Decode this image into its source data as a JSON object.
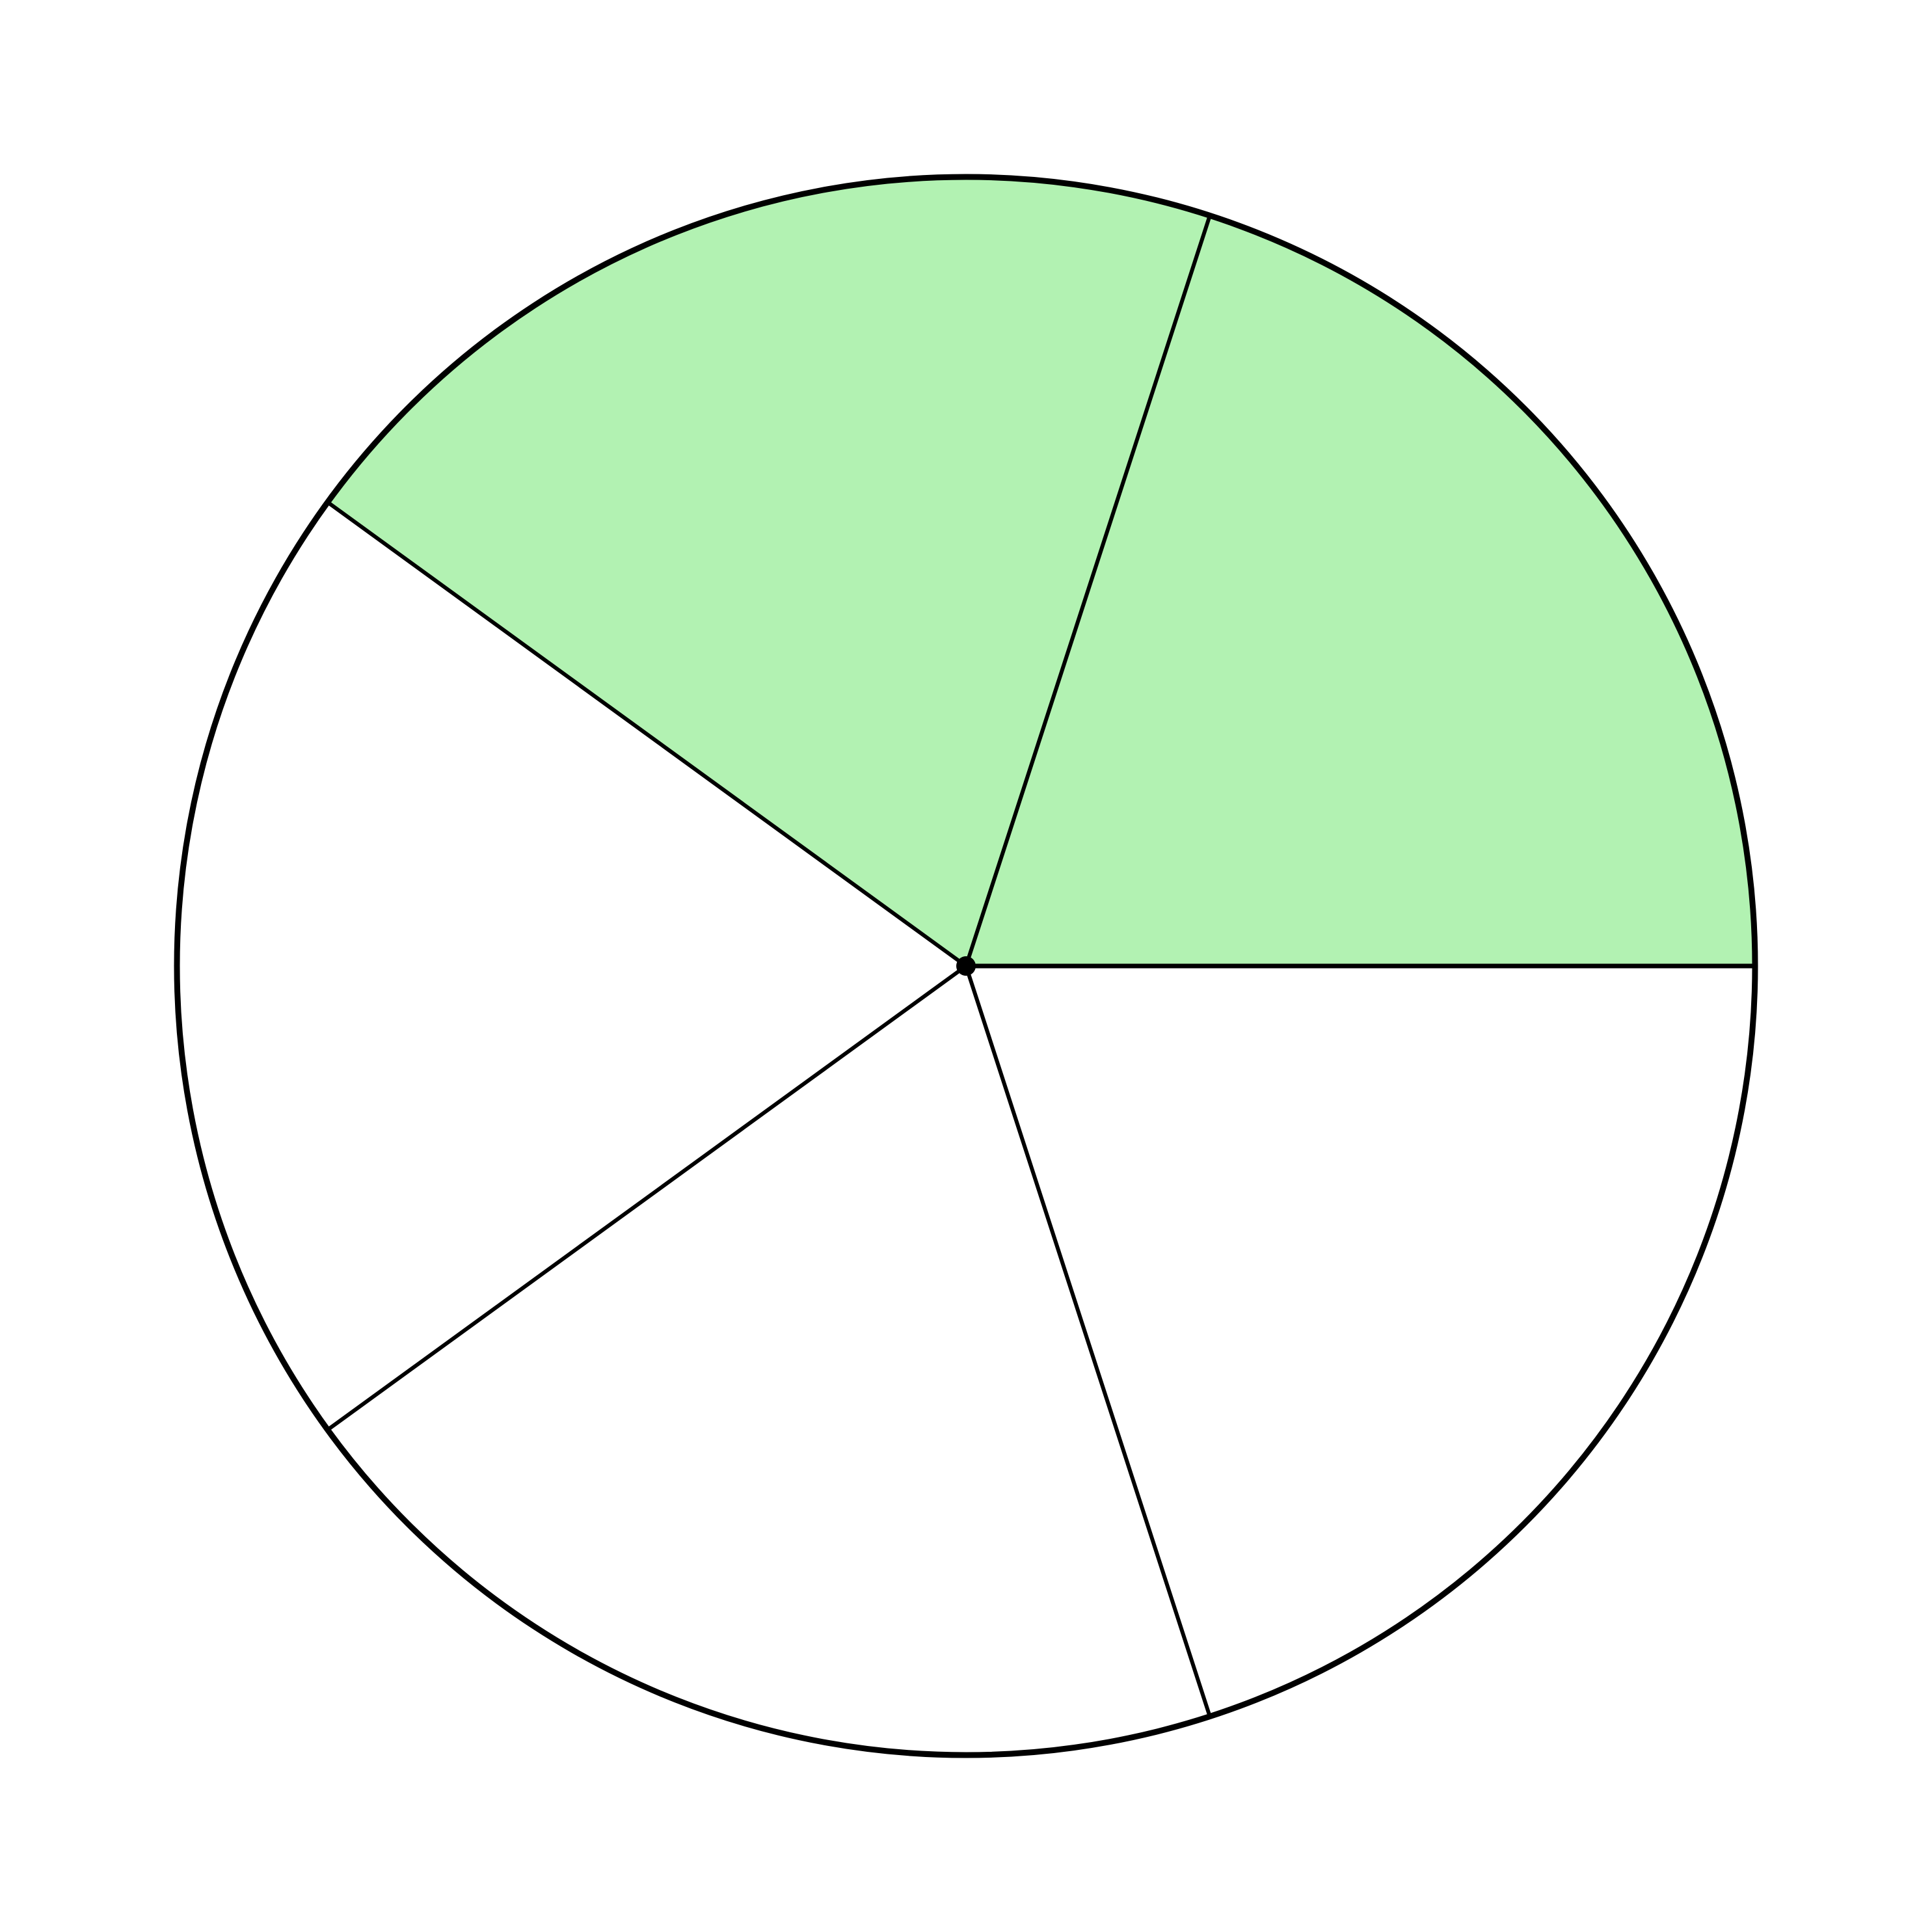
{
  "diagram": {
    "type": "fraction-circle",
    "total_parts": 5,
    "shaded_parts": 2,
    "shaded_fraction": "2/5",
    "colors": {
      "shaded_fill": "#b2f2b2",
      "unshaded_fill": "#ffffff",
      "stroke": "#000000"
    }
  }
}
